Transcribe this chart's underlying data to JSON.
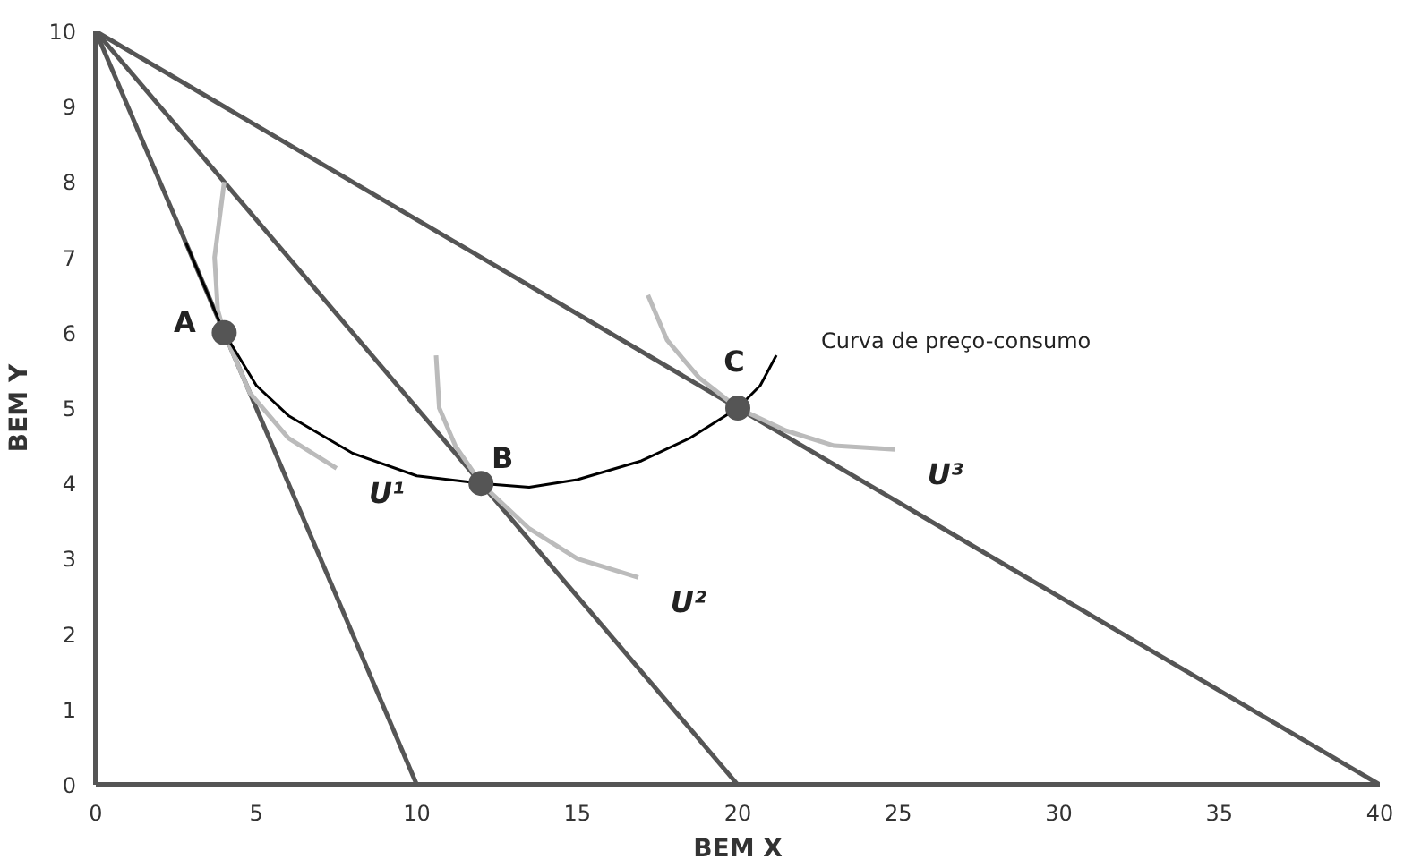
{
  "chart_data": {
    "type": "line",
    "xlabel": "BEM X",
    "ylabel": "BEM Y",
    "xlim": [
      0,
      40
    ],
    "ylim": [
      0,
      10
    ],
    "xticks": [
      0,
      5,
      10,
      15,
      20,
      25,
      30,
      35,
      40
    ],
    "yticks": [
      0,
      1,
      2,
      3,
      4,
      5,
      6,
      7,
      8,
      9,
      10
    ],
    "grid": false,
    "marker": "none",
    "line_style": "solid",
    "series": [
      {
        "color": "#555555",
        "x": [
          0,
          10
        ],
        "values": [
          10,
          0
        ]
      },
      {
        "color": "#555555",
        "x": [
          0,
          20
        ],
        "values": [
          10,
          0
        ]
      },
      {
        "color": "#555555",
        "x": [
          0,
          40
        ],
        "values": [
          10,
          0
        ]
      },
      {
        "name": "U¹",
        "color": "#bbbbbb",
        "x": [
          4.0,
          3.7,
          3.8,
          4,
          4.8,
          6,
          7.5
        ],
        "values": [
          8.0,
          7.0,
          6.3,
          6,
          5.2,
          4.6,
          4.2
        ]
      },
      {
        "name": "U²",
        "color": "#bbbbbb",
        "x": [
          10.6,
          10.7,
          11.2,
          12,
          13.5,
          15,
          16.9
        ],
        "values": [
          5.7,
          5.0,
          4.5,
          4,
          3.4,
          3.0,
          2.75
        ]
      },
      {
        "name": "U³",
        "color": "#bbbbbb",
        "x": [
          17.2,
          17.8,
          18.8,
          20,
          21.5,
          23,
          24.9
        ],
        "values": [
          6.5,
          5.9,
          5.4,
          5,
          4.7,
          4.5,
          4.45
        ]
      },
      {
        "name": "Curva de preço-consumo",
        "color": "#000000",
        "x": [
          2.8,
          3.4,
          4,
          5,
          6,
          8,
          10,
          12,
          13.5,
          15,
          17,
          18.5,
          20,
          20.7,
          21.2
        ],
        "values": [
          7.2,
          6.6,
          6,
          5.3,
          4.9,
          4.4,
          4.1,
          4,
          3.95,
          4.05,
          4.3,
          4.6,
          5,
          5.3,
          5.7
        ]
      },
      {
        "type": "scatter",
        "marker": "circle",
        "color": "#555555",
        "x": [
          4,
          12,
          20
        ],
        "values": [
          6,
          4,
          5
        ]
      }
    ],
    "annotations": [
      {
        "text": "A",
        "x": 4,
        "y": 6
      },
      {
        "text": "B",
        "x": 12,
        "y": 4
      },
      {
        "text": "C",
        "x": 20,
        "y": 5
      }
    ]
  }
}
